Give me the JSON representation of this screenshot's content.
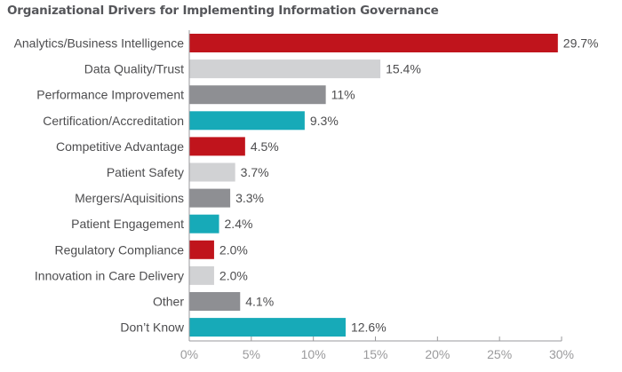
{
  "chart_data": {
    "type": "bar",
    "orientation": "horizontal",
    "title": "Organizational Drivers for Implementing Information Governance",
    "xlabel": "",
    "ylabel": "",
    "xlim": [
      0,
      30
    ],
    "grid": false,
    "categories": [
      "Analytics/Business Intelligence",
      "Data Quality/Trust",
      "Performance Improvement",
      "Certification/Accreditation",
      "Competitive Advantage",
      "Patient Safety",
      "Mergers/Aquisitions",
      "Patient Engagement",
      "Regulatory Compliance",
      "Innovation in Care Delivery",
      "Other",
      "Don’t Know"
    ],
    "values": [
      29.7,
      15.4,
      11,
      9.3,
      4.5,
      3.7,
      3.3,
      2.4,
      2.0,
      2.0,
      4.1,
      12.6
    ],
    "value_labels": [
      "29.7%",
      "15.4%",
      "11%",
      "9.3%",
      "4.5%",
      "3.7%",
      "3.3%",
      "2.4%",
      "2.0%",
      "2.0%",
      "4.1%",
      "12.6%"
    ],
    "x_ticks": [
      0,
      5,
      10,
      15,
      20,
      25,
      30
    ],
    "x_tick_labels": [
      "0%",
      "5%",
      "10%",
      "15%",
      "20%",
      "25%",
      "30%"
    ],
    "bar_colors": [
      "#c0141c",
      "#d1d2d4",
      "#8e8f93",
      "#17aab8",
      "#c0141c",
      "#d1d2d4",
      "#8e8f93",
      "#17aab8",
      "#c0141c",
      "#d1d2d4",
      "#8e8f93",
      "#17aab8"
    ],
    "axis_color": "#9a9a9c"
  }
}
